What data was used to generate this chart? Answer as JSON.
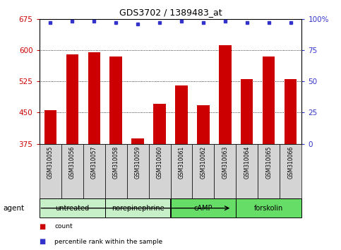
{
  "title": "GDS3702 / 1389483_at",
  "samples": [
    "GSM310055",
    "GSM310056",
    "GSM310057",
    "GSM310058",
    "GSM310059",
    "GSM310060",
    "GSM310061",
    "GSM310062",
    "GSM310063",
    "GSM310064",
    "GSM310065",
    "GSM310066"
  ],
  "counts": [
    456,
    590,
    595,
    585,
    388,
    470,
    515,
    468,
    612,
    530,
    585,
    530
  ],
  "percentile_ranks": [
    97,
    98,
    98,
    97,
    96,
    97,
    98,
    97,
    98,
    97,
    97,
    97
  ],
  "bar_color": "#cc0000",
  "dot_color": "#3333cc",
  "ylim_left": [
    375,
    675
  ],
  "ylim_right": [
    0,
    100
  ],
  "yticks_left": [
    375,
    450,
    525,
    600,
    675
  ],
  "yticks_right": [
    0,
    25,
    50,
    75,
    100
  ],
  "agents": [
    {
      "label": "untreated",
      "start": 0,
      "end": 3
    },
    {
      "label": "norepinephrine",
      "start": 3,
      "end": 6
    },
    {
      "label": "cAMP",
      "start": 6,
      "end": 9
    },
    {
      "label": "forskolin",
      "start": 9,
      "end": 12
    }
  ],
  "agent_colors": [
    "#c8f0c8",
    "#c8f0c8",
    "#66dd66",
    "#66dd66"
  ],
  "legend_count_label": "count",
  "legend_pct_label": "percentile rank within the sample",
  "left_tick_color": "#cc0000",
  "right_tick_color": "#3333cc",
  "bar_width": 0.55
}
